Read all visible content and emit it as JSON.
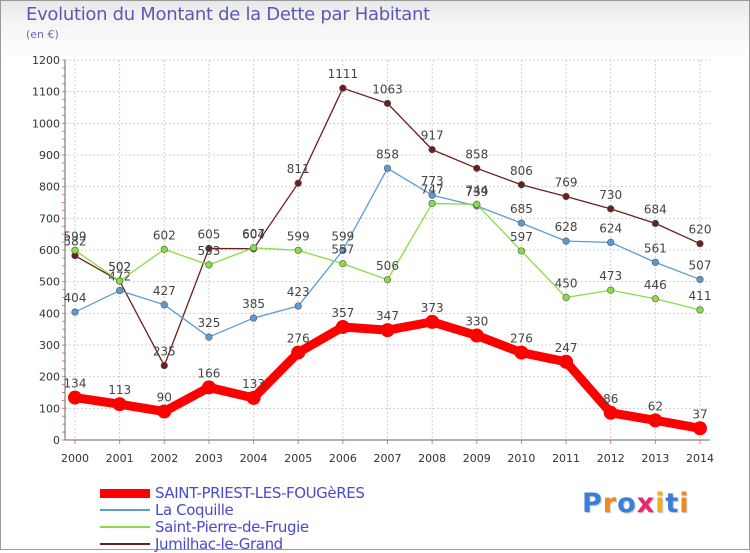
{
  "title": "Evolution du Montant de la Dette par Habitant",
  "subtitle": "(en €)",
  "logo": "Proxiti",
  "chart_data": {
    "type": "line",
    "categories": [
      "2000",
      "2001",
      "2002",
      "2003",
      "2004",
      "2005",
      "2006",
      "2007",
      "2008",
      "2009",
      "2010",
      "2011",
      "2012",
      "2013",
      "2014"
    ],
    "ylim": [
      0,
      1200
    ],
    "yticks": [
      0,
      100,
      200,
      300,
      400,
      500,
      600,
      700,
      800,
      900,
      1000,
      1100,
      1200
    ],
    "grid": true,
    "legend_position": "bottom-left",
    "series": [
      {
        "name": "SAINT-PRIEST-LES-FOUGèRES",
        "color": "#ff0000",
        "values": [
          134,
          113,
          90,
          166,
          133,
          276,
          357,
          347,
          373,
          330,
          276,
          247,
          86,
          62,
          37
        ]
      },
      {
        "name": "La Coquille",
        "color": "#5b9bd5",
        "values": [
          404,
          472,
          427,
          325,
          385,
          423,
          599,
          858,
          773,
          739,
          685,
          628,
          624,
          561,
          507
        ]
      },
      {
        "name": "Saint-Pierre-de-Frugie",
        "color": "#88dd44",
        "values": [
          599,
          502,
          602,
          553,
          607,
          599,
          557,
          506,
          747,
          744,
          597,
          450,
          473,
          446,
          411
        ]
      },
      {
        "name": "Jumilhac-le-Grand",
        "color": "#6b1e1e",
        "values": [
          582,
          502,
          235,
          605,
          604,
          811,
          1111,
          1063,
          917,
          858,
          806,
          769,
          730,
          684,
          620
        ]
      }
    ]
  }
}
